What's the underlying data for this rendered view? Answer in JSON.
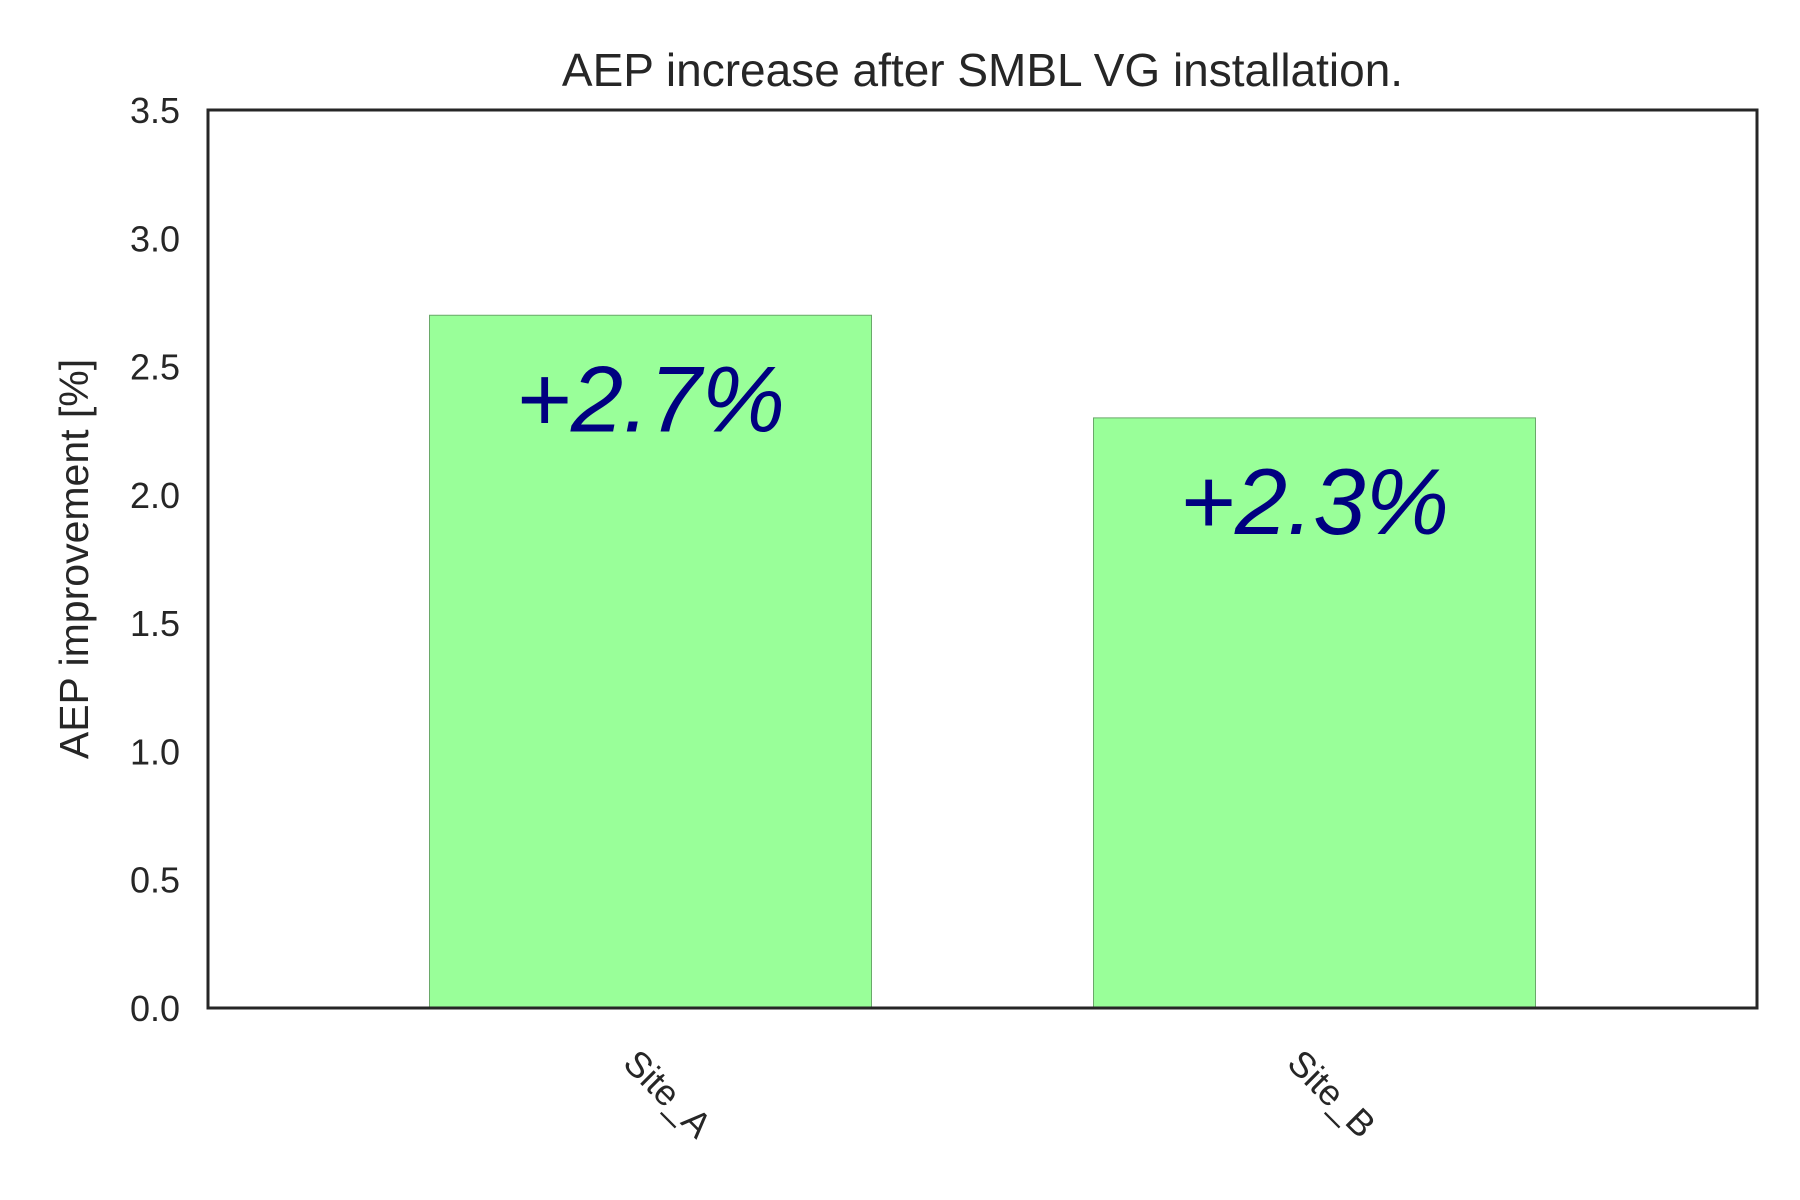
{
  "chart_data": {
    "type": "bar",
    "title": "AEP increase after SMBL VG installation.",
    "xlabel": "",
    "ylabel": "AEP improvement [%]",
    "categories": [
      "Site_A",
      "Site_B"
    ],
    "values": [
      2.7,
      2.3
    ],
    "data_labels": [
      "+2.7%",
      "+2.3%"
    ],
    "ylim": [
      0.0,
      3.5
    ],
    "yticks": [
      "0.0",
      "0.5",
      "1.0",
      "1.5",
      "2.0",
      "2.5",
      "3.0",
      "3.5"
    ],
    "grid": false,
    "legend": "none",
    "xtick_rotation_deg": 45,
    "colors": {
      "bar_fill": "#99ff99",
      "bar_edge": "#6aa86a",
      "data_label": "#000080",
      "axes": "#262626",
      "text": "#262626"
    }
  }
}
